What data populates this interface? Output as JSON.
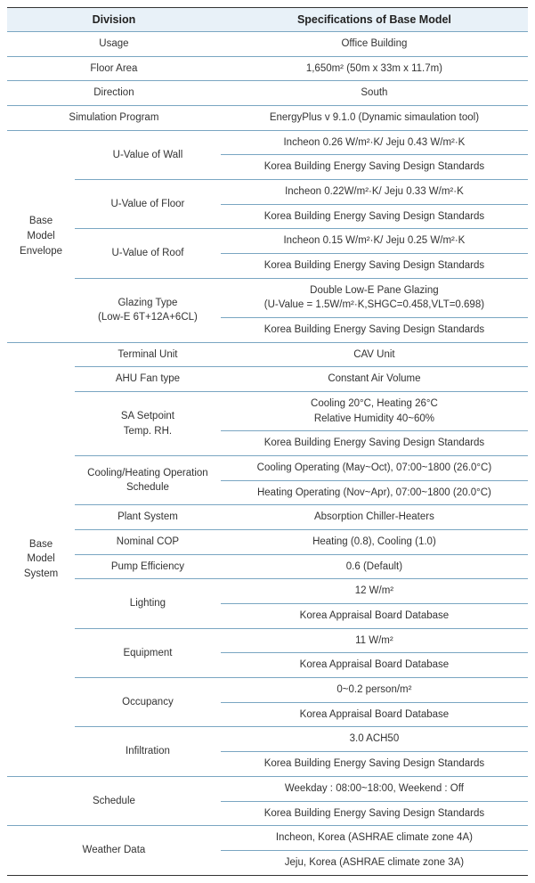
{
  "header": {
    "division": "Division",
    "spec": "Specifications of Base Model"
  },
  "usage": {
    "label": "Usage",
    "value": "Office Building"
  },
  "floorArea": {
    "label": "Floor Area",
    "value": "1,650m² (50m x 33m x 11.7m)"
  },
  "direction": {
    "label": "Direction",
    "value": "South"
  },
  "simProg": {
    "label": "Simulation Program",
    "value": "EnergyPlus v 9.1.0 (Dynamic simaulation tool)"
  },
  "envelope": {
    "label": "Base\nModel\nEnvelope",
    "uWall": {
      "label": "U-Value of Wall",
      "v1": "Incheon 0.26 W/m²·K/  Jeju 0.43 W/m²·K",
      "v2": "Korea Building Energy Saving Design Standards"
    },
    "uFloor": {
      "label": "U-Value of Floor",
      "v1": "Incheon 0.22W/m²·K/  Jeju 0.33 W/m²·K",
      "v2": "Korea Building Energy Saving Design Standards"
    },
    "uRoof": {
      "label": "U-Value of Roof",
      "v1": "Incheon 0.15 W/m²·K/  Jeju 0.25 W/m²·K",
      "v2": "Korea Building Energy Saving Design Standards"
    },
    "glazing": {
      "label": "Glazing Type\n(Low-E 6T+12A+6CL)",
      "v1": "Double Low-E Pane Glazing\n(U-Value = 1.5W/m²·K,SHGC=0.458,VLT=0.698)",
      "v2": "Korea Building Energy Saving Design Standards"
    }
  },
  "system": {
    "label": "Base\nModel\nSystem",
    "terminal": {
      "label": "Terminal Unit",
      "value": "CAV Unit"
    },
    "ahu": {
      "label": "AHU Fan type",
      "value": "Constant Air Volume"
    },
    "sa": {
      "label": "SA Setpoint\nTemp. RH.",
      "v1": "Cooling 20°C, Heating 26°C\nRelative Humidity 40~60%",
      "v2": "Korea Building Energy Saving Design Standards"
    },
    "opSched": {
      "label": "Cooling/Heating Operation\nSchedule",
      "v1": "Cooling Operating (May~Oct), 07:00~1800 (26.0°C)",
      "v2": "Heating Operating (Nov~Apr), 07:00~1800 (20.0°C)"
    },
    "plant": {
      "label": "Plant System",
      "value": "Absorption Chiller-Heaters"
    },
    "cop": {
      "label": "Nominal COP",
      "value": "Heating (0.8), Cooling (1.0)"
    },
    "pump": {
      "label": "Pump Efficiency",
      "value": "0.6 (Default)"
    },
    "lighting": {
      "label": "Lighting",
      "v1": "12 W/m²",
      "v2": "Korea Appraisal Board Database"
    },
    "equipment": {
      "label": "Equipment",
      "v1": "11 W/m²",
      "v2": "Korea Appraisal Board Database"
    },
    "occupancy": {
      "label": "Occupancy",
      "v1": "0~0.2 person/m²",
      "v2": "Korea Appraisal Board Database"
    },
    "infil": {
      "label": "Infiltration",
      "v1": "3.0 ACH50",
      "v2": "Korea Building Energy Saving Design Standards"
    }
  },
  "schedule": {
    "label": "Schedule",
    "v1": "Weekday : 08:00~18:00, Weekend : Off",
    "v2": "Korea Building Energy Saving Design Standards"
  },
  "weather": {
    "label": "Weather Data",
    "v1": "Incheon, Korea (ASHRAE climate zone 4A)",
    "v2": "Jeju, Korea (ASHRAE climate zone 3A)"
  }
}
